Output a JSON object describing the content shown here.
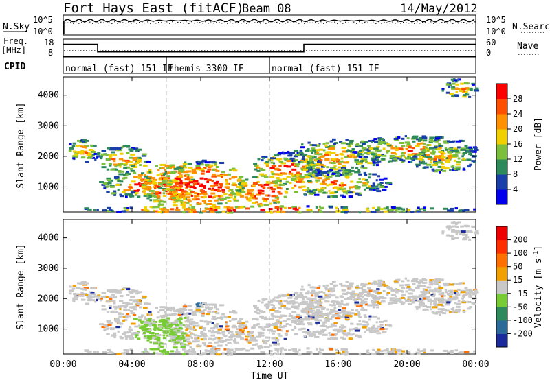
{
  "header": {
    "title": "Fort Hays East (fitACF)",
    "beam": "Beam 08",
    "date": "14/May/2012"
  },
  "noise_panel": {
    "left_label": "N.Sky",
    "right_label": "N.Search",
    "left_ticks": [
      "10^5",
      "10^0"
    ],
    "right_ticks": [
      "10^5",
      "10^0"
    ]
  },
  "freq_panel": {
    "left_label_line1": "Freq.",
    "left_label_line2": "[MHz]",
    "right_label": "Nave",
    "left_ticks": [
      "18",
      "8"
    ],
    "right_ticks": [
      "60",
      "0"
    ],
    "freq_segments": [
      {
        "t0": 0,
        "t1": 2,
        "freq": 15.0
      },
      {
        "t0": 2,
        "t1": 14,
        "freq": 10.5
      },
      {
        "t0": 14,
        "t1": 24,
        "freq": 15.0
      }
    ]
  },
  "cpid_panel": {
    "label": "CPID",
    "segments": [
      {
        "t0": 0,
        "t1": 6,
        "name": "normal (fast) 151 IF"
      },
      {
        "t0": 6,
        "t1": 12,
        "name": "themis 3300 IF"
      },
      {
        "t0": 12,
        "t1": 24,
        "name": "normal (fast) 151 IF"
      }
    ]
  },
  "axes": {
    "ylabel": "Slant Range [km]",
    "xlabel": "Time UT",
    "y_ticks": [
      "1000",
      "2000",
      "3000",
      "4000"
    ],
    "x_ticks": [
      "00:00",
      "04:00",
      "08:00",
      "12:00",
      "16:00",
      "20:00",
      "00:00"
    ]
  },
  "power_colorbar": {
    "label": "Power [dB]",
    "ticks": [
      "28",
      "24",
      "20",
      "16",
      "12",
      "8",
      "4"
    ],
    "colors": [
      "#0000ee",
      "#1a3fa8",
      "#2e8a5a",
      "#7bbf3c",
      "#f0d000",
      "#ff9000",
      "#ff5000",
      "#ff0000"
    ]
  },
  "velocity_colorbar": {
    "label": "Velocity [m s^-1]",
    "ticks": [
      "200",
      "100",
      "50",
      "15",
      "-15",
      "-50",
      "-100",
      "-200"
    ],
    "colors": [
      "#1a2a9a",
      "#2c6a9a",
      "#2e8a5a",
      "#77cc33",
      "#c8c8c8",
      "#f0a000",
      "#ff7000",
      "#ff3000",
      "#ee0000"
    ]
  },
  "chart_data": {
    "type": "heatmap",
    "title": "Fort Hays East (fitACF)",
    "xlabel": "Time UT",
    "ylabel": "Slant Range [km]",
    "xlim": [
      0,
      24
    ],
    "ylim": [
      180,
      4600
    ],
    "scatter_regions": [
      {
        "t0": 0.1,
        "t1": 2.0,
        "r0": 1850,
        "r1": 2600
      },
      {
        "t0": 1.8,
        "t1": 4.9,
        "r0": 1500,
        "r1": 2400
      },
      {
        "t0": 2.0,
        "t1": 6.0,
        "r0": 700,
        "r1": 1500
      },
      {
        "t0": 4.5,
        "t1": 7.5,
        "r0": 400,
        "r1": 1800
      },
      {
        "t0": 5.5,
        "t1": 10.5,
        "r0": 300,
        "r1": 1900
      },
      {
        "t0": 10.0,
        "t1": 13.0,
        "r0": 400,
        "r1": 1400
      },
      {
        "t0": 11.0,
        "t1": 15.0,
        "r0": 1200,
        "r1": 2200
      },
      {
        "t0": 12.5,
        "t1": 19.0,
        "r0": 700,
        "r1": 1600
      },
      {
        "t0": 13.0,
        "t1": 18.5,
        "r0": 1400,
        "r1": 2600
      },
      {
        "t0": 16.5,
        "t1": 24.0,
        "r0": 1800,
        "r1": 2700
      },
      {
        "t0": 20.0,
        "t1": 24.0,
        "r0": 1500,
        "r1": 2400
      },
      {
        "t0": 22.0,
        "t1": 24.0,
        "r0": 3900,
        "r1": 4600
      },
      {
        "t0": 0.1,
        "t1": 24.0,
        "r0": 180,
        "r1": 400
      }
    ]
  }
}
